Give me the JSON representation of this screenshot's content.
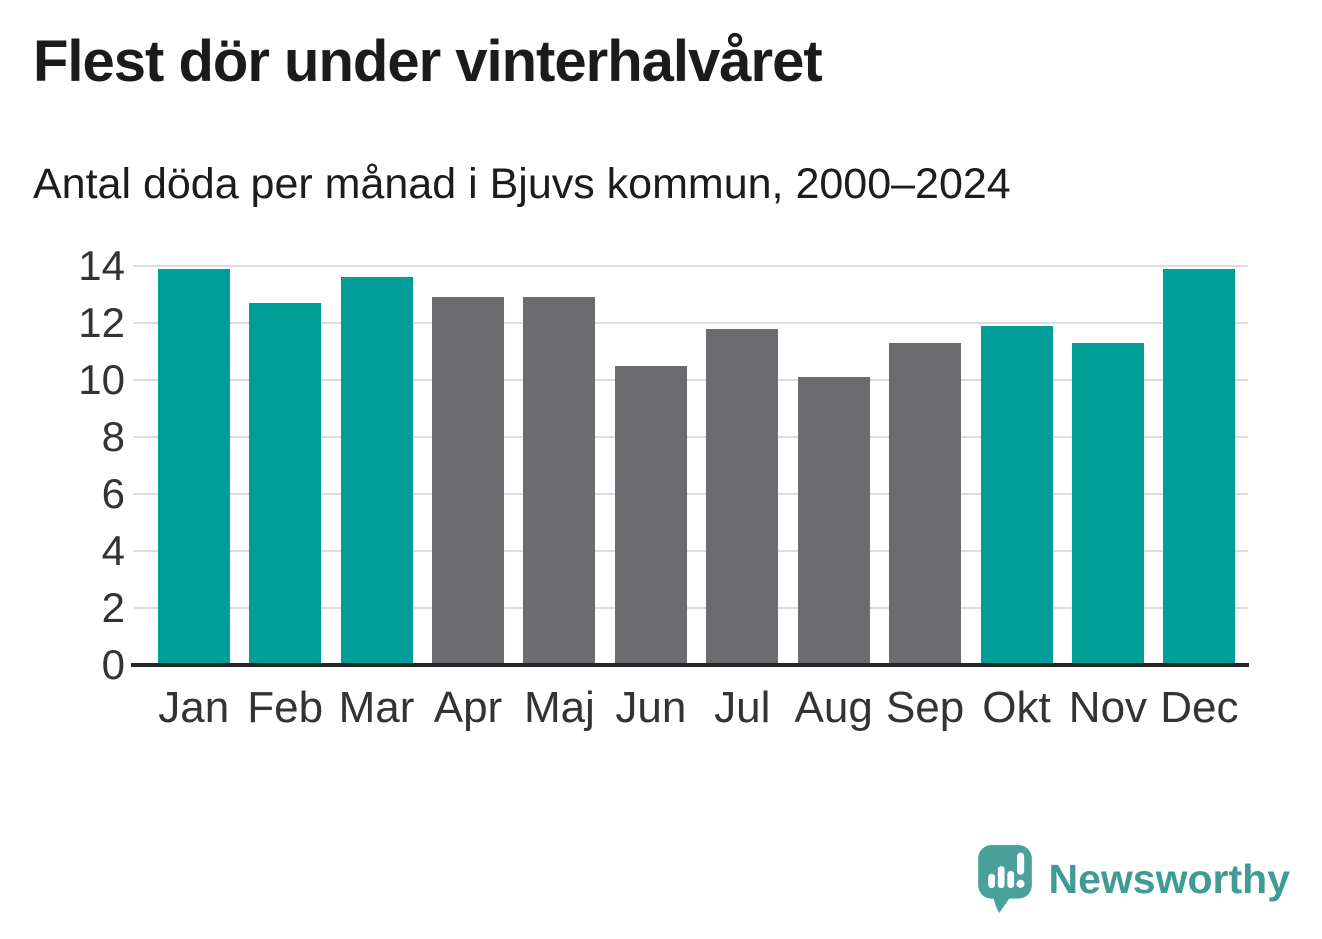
{
  "chart_data": {
    "type": "bar",
    "title": "Flest dör under vinterhalvåret",
    "subtitle": "Antal döda per månad i Bjuvs kommun, 2000–2024",
    "categories": [
      "Jan",
      "Feb",
      "Mar",
      "Apr",
      "Maj",
      "Jun",
      "Jul",
      "Aug",
      "Sep",
      "Okt",
      "Nov",
      "Dec"
    ],
    "values": [
      13.9,
      12.7,
      13.6,
      12.9,
      12.9,
      10.5,
      11.8,
      10.1,
      11.3,
      11.9,
      11.3,
      13.9
    ],
    "bar_groups": [
      "winter",
      "winter",
      "winter",
      "summer",
      "summer",
      "summer",
      "summer",
      "summer",
      "summer",
      "winter",
      "winter",
      "winter"
    ],
    "bar_palette": {
      "winter": "#009E96",
      "summer": "#6C6C70"
    },
    "xlabel": "",
    "ylabel": "",
    "ylim": [
      0,
      14
    ],
    "yticks": [
      0,
      2,
      4,
      6,
      8,
      10,
      12,
      14
    ],
    "grid": true,
    "legend": "none",
    "colors": {
      "gridline": "#dcdcdc",
      "axis": "#262626",
      "tick_labels": "#333333",
      "title": "#1b1b1b",
      "subtitle": "#1c1c1c"
    }
  },
  "footer": {
    "brand": "Newsworthy",
    "brand_color": "#3E9B95",
    "logo_icon": "speech-bubble-with-bar-chart-and-exclamation"
  }
}
